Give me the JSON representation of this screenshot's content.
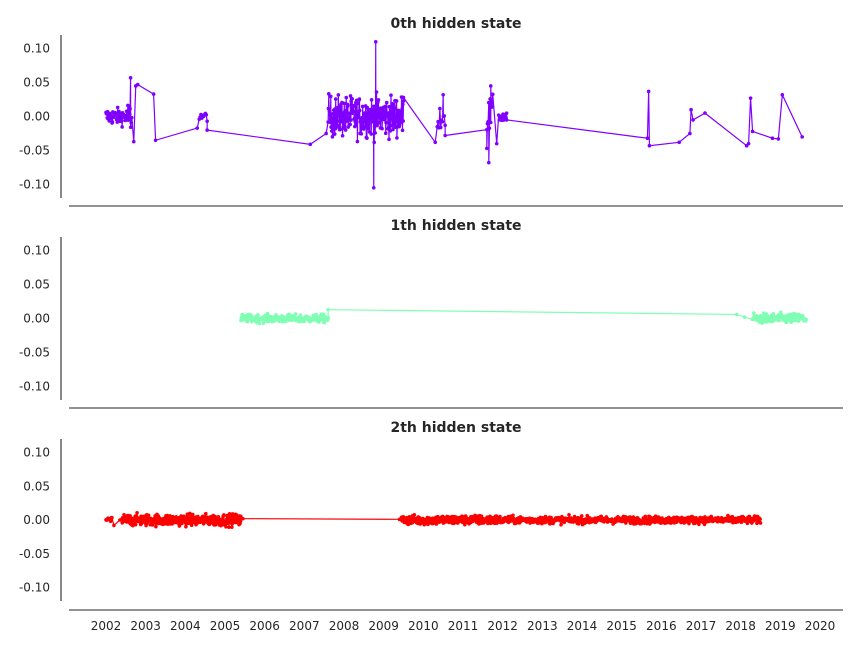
{
  "chart_data": [
    {
      "type": "line",
      "title": "0th hidden state",
      "color": "#8000ff",
      "ylim": [
        -0.12,
        0.12
      ],
      "yticks": [
        "0.10",
        "0.05",
        "0.00",
        "-0.05",
        "-0.10"
      ],
      "ytick_values": [
        0.1,
        0.05,
        0.0,
        -0.05,
        -0.1
      ],
      "grid": false,
      "segments": [
        {
          "x_start": 2002.0,
          "x_end": 2002.6,
          "noise": 0.022,
          "density": 60
        },
        {
          "x_start": 2002.55,
          "x_end": 2002.65,
          "noise": 0.045,
          "density": 8
        },
        {
          "x_start": 2004.35,
          "x_end": 2004.55,
          "noise": 0.012,
          "density": 10
        },
        {
          "x_start": 2007.6,
          "x_end": 2009.5,
          "noise": 0.055,
          "density": 230
        },
        {
          "x_start": 2010.35,
          "x_end": 2010.55,
          "noise": 0.035,
          "density": 10
        },
        {
          "x_start": 2011.6,
          "x_end": 2011.75,
          "noise": 0.05,
          "density": 10
        },
        {
          "x_start": 2011.9,
          "x_end": 2012.1,
          "noise": 0.015,
          "density": 14
        }
      ],
      "points": [
        [
          2002.62,
          0.057
        ],
        [
          2002.7,
          -0.037
        ],
        [
          2002.75,
          0.045
        ],
        [
          2002.8,
          0.047
        ],
        [
          2003.2,
          0.033
        ],
        [
          2003.25,
          -0.035
        ],
        [
          2004.3,
          -0.017
        ],
        [
          2004.55,
          -0.02
        ],
        [
          2007.15,
          -0.041
        ],
        [
          2007.55,
          -0.025
        ],
        [
          2008.8,
          0.11
        ],
        [
          2008.75,
          -0.105
        ],
        [
          2009.5,
          0.028
        ],
        [
          2010.3,
          -0.038
        ],
        [
          2010.5,
          0.032
        ],
        [
          2010.55,
          -0.028
        ],
        [
          2011.6,
          -0.047
        ],
        [
          2011.65,
          -0.068
        ],
        [
          2011.7,
          0.045
        ],
        [
          2011.85,
          -0.04
        ],
        [
          2012.1,
          -0.005
        ],
        [
          2015.65,
          -0.032
        ],
        [
          2015.68,
          0.037
        ],
        [
          2015.7,
          -0.043
        ],
        [
          2016.45,
          -0.038
        ],
        [
          2016.72,
          -0.025
        ],
        [
          2016.75,
          0.01
        ],
        [
          2016.8,
          -0.005
        ],
        [
          2017.1,
          0.005
        ],
        [
          2018.15,
          -0.043
        ],
        [
          2018.2,
          -0.04
        ],
        [
          2018.25,
          0.027
        ],
        [
          2018.3,
          -0.022
        ],
        [
          2018.8,
          -0.032
        ],
        [
          2018.95,
          -0.033
        ],
        [
          2019.05,
          0.032
        ],
        [
          2019.55,
          -0.03
        ]
      ]
    },
    {
      "type": "line",
      "title": "1th hidden state",
      "color": "#80ffb4",
      "ylim": [
        -0.12,
        0.12
      ],
      "yticks": [
        "0.10",
        "0.05",
        "0.00",
        "-0.05",
        "-0.10"
      ],
      "ytick_values": [
        0.1,
        0.05,
        0.0,
        -0.05,
        -0.1
      ],
      "grid": false,
      "segments": [
        {
          "x_start": 2005.4,
          "x_end": 2007.6,
          "noise": 0.011,
          "density": 200
        },
        {
          "x_start": 2018.3,
          "x_end": 2019.65,
          "noise": 0.014,
          "density": 130
        }
      ],
      "points": [
        [
          2007.6,
          0.013
        ],
        [
          2017.9,
          0.006
        ],
        [
          2018.1,
          0.002
        ]
      ]
    },
    {
      "type": "line",
      "title": "2th hidden state",
      "color": "#ff0000",
      "ylim": [
        -0.12,
        0.12
      ],
      "yticks": [
        "0.10",
        "0.05",
        "0.00",
        "-0.05",
        "-0.10"
      ],
      "ytick_values": [
        0.1,
        0.05,
        0.0,
        -0.05,
        -0.1
      ],
      "xticks": [
        "2002",
        "2003",
        "2004",
        "2005",
        "2006",
        "2007",
        "2008",
        "2009",
        "2010",
        "2011",
        "2012",
        "2013",
        "2014",
        "2015",
        "2016",
        "2017",
        "2018",
        "2019",
        "2020"
      ],
      "xlim": [
        2001.1,
        2020.6
      ],
      "grid": false,
      "segments": [
        {
          "x_start": 2002.0,
          "x_end": 2002.15,
          "noise": 0.008,
          "density": 10
        },
        {
          "x_start": 2002.4,
          "x_end": 2005.4,
          "noise": 0.016,
          "density": 330
        },
        {
          "x_start": 2009.45,
          "x_end": 2011.95,
          "noise": 0.013,
          "density": 280
        },
        {
          "x_start": 2012.0,
          "x_end": 2018.5,
          "noise": 0.01,
          "density": 650
        }
      ],
      "points": [
        [
          2002.2,
          -0.008
        ],
        [
          2002.35,
          0.0
        ],
        [
          2005.45,
          0.002
        ],
        [
          2009.4,
          0.001
        ]
      ]
    }
  ]
}
